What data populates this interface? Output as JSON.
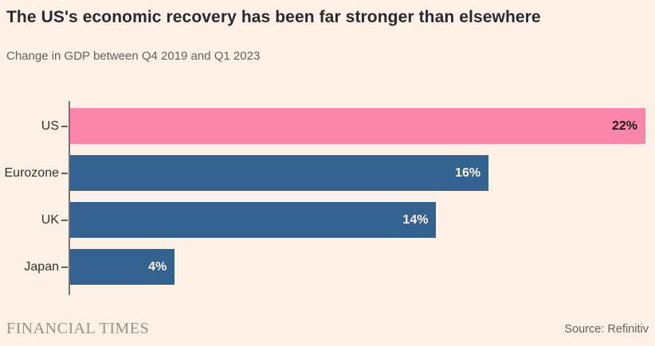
{
  "header": {
    "title": "The US's economic recovery has been far stronger than elsewhere",
    "subtitle": "Change in GDP between Q4 2019 and Q1 2023"
  },
  "chart_data": {
    "type": "bar",
    "orientation": "horizontal",
    "title": "The US's economic recovery has been far stronger than elsewhere",
    "subtitle": "Change in GDP between Q4 2019 and Q1 2023",
    "categories": [
      "US",
      "Eurozone",
      "UK",
      "Japan"
    ],
    "values": [
      22,
      16,
      14,
      4
    ],
    "data_labels": [
      "22%",
      "16%",
      "14%",
      "4%"
    ],
    "unit": "%",
    "xlim": [
      0,
      22
    ],
    "grid": false,
    "legend": "none",
    "bar_colors": [
      "#FC86AB",
      "#32628F",
      "#32628F",
      "#32628F"
    ],
    "data_label_colors": [
      "#1A1817",
      "#FFF1E5",
      "#FFF1E5",
      "#FFF1E5"
    ],
    "highlight_category": "US",
    "highlight_color": "#FC86AB",
    "default_color": "#32628F",
    "background_color": "#FFF1E5",
    "axis_color": "#7A736B"
  },
  "footer": {
    "brand": "FINANCIAL TIMES",
    "source": "Source: Refinitiv"
  }
}
